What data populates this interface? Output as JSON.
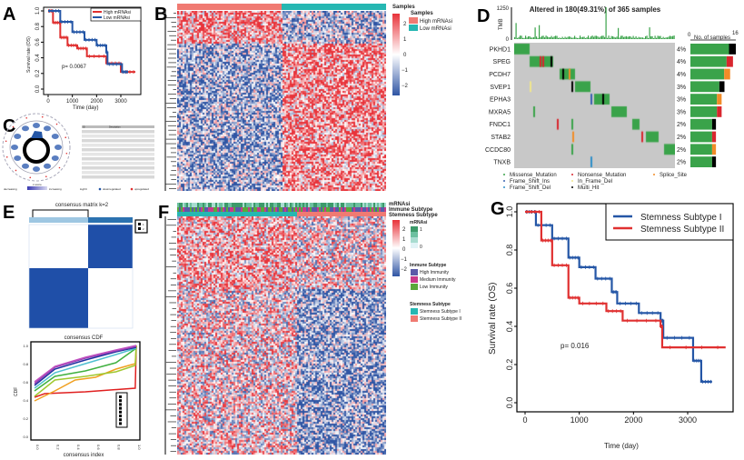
{
  "colors": {
    "red": "#e03030",
    "blue": "#2456a6",
    "heat_hi": "#e8333a",
    "heat_lo": "#2f55a4",
    "salmon": "#f07a72",
    "teal": "#26b7b2",
    "green": "#3aa34a",
    "gray": "#c8c8c8"
  },
  "panels": {
    "A": "A",
    "B": "B",
    "C": "C",
    "D": "D",
    "E": "E",
    "F": "F",
    "G": "G"
  },
  "chart_data": [
    {
      "id": "A",
      "type": "line",
      "xlabel": "Time (day)",
      "ylabel": "Survival rate (OS)",
      "xticks": [
        "0",
        "1000",
        "2000",
        "3000"
      ],
      "yticks": [
        "0.0",
        "0.2",
        "0.4",
        "0.6",
        "0.8",
        "1.0"
      ],
      "xlim": [
        0,
        3600
      ],
      "ylim": [
        0,
        1
      ],
      "annotation": "p= 0.0067",
      "legend": "top-right",
      "series": [
        {
          "name": "High mRNAsi",
          "color": "#e03030",
          "points": [
            [
              0,
              1
            ],
            [
              200,
              0.85
            ],
            [
              500,
              0.66
            ],
            [
              800,
              0.56
            ],
            [
              1200,
              0.52
            ],
            [
              1600,
              0.42
            ],
            [
              2400,
              0.33
            ],
            [
              3000,
              0.22
            ],
            [
              3600,
              0.22
            ]
          ]
        },
        {
          "name": "Low mRNAsi",
          "color": "#2456a6",
          "points": [
            [
              0,
              1
            ],
            [
              500,
              0.86
            ],
            [
              1000,
              0.73
            ],
            [
              1500,
              0.63
            ],
            [
              2000,
              0.56
            ],
            [
              2400,
              0.47
            ],
            [
              2450,
              0.32
            ],
            [
              3050,
              0.22
            ],
            [
              3300,
              0.22
            ]
          ]
        }
      ]
    },
    {
      "id": "G",
      "type": "line",
      "xlabel": "Time (day)",
      "ylabel": "Survival rate (OS)",
      "xticks": [
        "0",
        "1000",
        "2000",
        "3000"
      ],
      "yticks": [
        "0.0",
        "0.2",
        "0.4",
        "0.6",
        "0.8",
        "1.0"
      ],
      "xlim": [
        0,
        3700
      ],
      "ylim": [
        0,
        1
      ],
      "annotation": "p= 0.016",
      "legend": "top-right",
      "series": [
        {
          "name": "Stemness Subtype I",
          "color": "#2456a6",
          "points": [
            [
              0,
              1
            ],
            [
              200,
              0.93
            ],
            [
              500,
              0.86
            ],
            [
              800,
              0.76
            ],
            [
              1000,
              0.71
            ],
            [
              1300,
              0.65
            ],
            [
              1600,
              0.58
            ],
            [
              1700,
              0.52
            ],
            [
              2100,
              0.47
            ],
            [
              2500,
              0.43
            ],
            [
              2550,
              0.34
            ],
            [
              3100,
              0.22
            ],
            [
              3250,
              0.11
            ],
            [
              3450,
              0.11
            ]
          ]
        },
        {
          "name": "Stemness Subtype II",
          "color": "#e03030",
          "points": [
            [
              0,
              1
            ],
            [
              300,
              0.85
            ],
            [
              500,
              0.72
            ],
            [
              800,
              0.55
            ],
            [
              1000,
              0.52
            ],
            [
              1500,
              0.48
            ],
            [
              1800,
              0.43
            ],
            [
              2500,
              0.4
            ],
            [
              2530,
              0.29
            ],
            [
              3700,
              0.29
            ]
          ]
        }
      ]
    },
    {
      "id": "E-cdf",
      "type": "line",
      "title": "consensus CDF",
      "xlabel": "consensus index",
      "ylabel": "CDF",
      "xticks": [
        "0.0",
        "0.2",
        "0.4",
        "0.6",
        "0.8",
        "1.0"
      ],
      "yticks": [
        "0.0",
        "0.2",
        "0.4",
        "0.6",
        "0.8",
        "1.0"
      ],
      "xlim": [
        0,
        1
      ],
      "ylim": [
        0,
        1
      ],
      "series": [
        {
          "color": "#e02020",
          "points": [
            [
              0,
              0.43
            ],
            [
              0.1,
              0.47
            ],
            [
              0.5,
              0.49
            ],
            [
              0.99,
              0.53
            ],
            [
              1,
              1
            ]
          ]
        },
        {
          "color": "#f0a020",
          "points": [
            [
              0,
              0.39
            ],
            [
              0.2,
              0.5
            ],
            [
              0.4,
              0.62
            ],
            [
              0.6,
              0.65
            ],
            [
              0.8,
              0.74
            ],
            [
              0.99,
              0.8
            ],
            [
              1,
              1
            ]
          ]
        },
        {
          "color": "#a0c830",
          "points": [
            [
              0,
              0.44
            ],
            [
              0.2,
              0.62
            ],
            [
              0.5,
              0.66
            ],
            [
              0.8,
              0.71
            ],
            [
              0.99,
              0.78
            ],
            [
              1,
              1
            ]
          ]
        },
        {
          "color": "#40b040",
          "points": [
            [
              0,
              0.5
            ],
            [
              0.2,
              0.66
            ],
            [
              0.5,
              0.72
            ],
            [
              0.8,
              0.81
            ],
            [
              1,
              0.97
            ]
          ]
        },
        {
          "color": "#50c0d0",
          "points": [
            [
              0,
              0.53
            ],
            [
              0.2,
              0.7
            ],
            [
              0.5,
              0.8
            ],
            [
              0.8,
              0.9
            ],
            [
              1,
              0.97
            ]
          ]
        },
        {
          "color": "#2030a0",
          "points": [
            [
              0,
              0.56
            ],
            [
              0.2,
              0.74
            ],
            [
              0.5,
              0.84
            ],
            [
              0.8,
              0.93
            ],
            [
              1,
              0.98
            ]
          ]
        },
        {
          "color": "#9040b0",
          "points": [
            [
              0,
              0.58
            ],
            [
              0.2,
              0.76
            ],
            [
              0.5,
              0.86
            ],
            [
              0.8,
              0.94
            ],
            [
              1,
              0.99
            ]
          ]
        },
        {
          "color": "#c050c0",
          "points": [
            [
              0,
              0.6
            ],
            [
              0.2,
              0.77
            ],
            [
              0.5,
              0.87
            ],
            [
              0.8,
              0.95
            ],
            [
              1,
              1
            ]
          ]
        }
      ]
    },
    {
      "id": "D-side",
      "type": "bar",
      "xlabel": "No. of samples",
      "xlim": [
        0,
        16
      ],
      "categories": [
        "PKHD1",
        "SPEG",
        "PCDH7",
        "SVEP1",
        "EPHA3",
        "MXRA5",
        "FNDC1",
        "STAB2",
        "CCDC80",
        "TNXB"
      ],
      "values": [
        16,
        15,
        14,
        12,
        11,
        11,
        9,
        9,
        9,
        9
      ]
    }
  ],
  "A": {
    "legend": [
      "High mRNAsi",
      "Low mRNAsi"
    ]
  },
  "B": {
    "legend_title": "Samples",
    "group_title": "Samples",
    "groups": [
      "High mRNAsi",
      "Low mRNAsi"
    ],
    "scale": [
      "2",
      "1",
      "0",
      "−1",
      "−2"
    ]
  },
  "C": {
    "table_header": [
      "ID",
      "Description"
    ],
    "legend_labels": [
      "decreasing",
      "z-score",
      "increasing",
      "logFC",
      "downregulated",
      "upregulated"
    ]
  },
  "D": {
    "title": "Altered in 180(49.31%) of 365 samples",
    "tmb_label": "TMB",
    "tmb_max": "1250",
    "tmb_min": "0",
    "side_min": "0",
    "side_max": "16",
    "side_label": "No. of samples",
    "genes": [
      "PKHD1",
      "SPEG",
      "PCDH7",
      "SVEP1",
      "EPHA3",
      "MXRA5",
      "FNDC1",
      "STAB2",
      "CCDC80",
      "TNXB"
    ],
    "percents": [
      "4%",
      "4%",
      "4%",
      "3%",
      "3%",
      "3%",
      "2%",
      "2%",
      "2%",
      "2%"
    ],
    "legend": [
      {
        "label": "Missense_Mutation",
        "color": "#3aa34a"
      },
      {
        "label": "Nonsense_Mutation",
        "color": "#d9262e"
      },
      {
        "label": "Splice_Site",
        "color": "#f28c28"
      },
      {
        "label": "Frame_Shift_Ins",
        "color": "#3a62b0"
      },
      {
        "label": "In_Frame_Del",
        "color": "#f0e68c"
      },
      {
        "label": "Frame_Shift_Del",
        "color": "#2f8fc8"
      },
      {
        "label": "Multi_Hit",
        "color": "#000000"
      }
    ]
  },
  "E": {
    "title": "consensus matrix k=2",
    "legend": [
      "1",
      "2"
    ]
  },
  "F": {
    "ann_labels": [
      "mRNAsi",
      "Immune Subtype",
      "Stemness Subtype"
    ],
    "scale": [
      "2",
      "1",
      "0",
      "−1",
      "−2"
    ],
    "mrnasi_title": "mRNAsi",
    "mrnasi_ticks": [
      "1",
      "0"
    ],
    "immune_title": "Immune Subtype",
    "immune": [
      {
        "label": "High Immunity",
        "color": "#5a5aa8"
      },
      {
        "label": "Medium Immunity",
        "color": "#c83a8a"
      },
      {
        "label": "Low Immunity",
        "color": "#5aa83a"
      }
    ],
    "stem_title": "Stemness Subtype",
    "stem": [
      {
        "label": "Stemness Subtype I",
        "color": "#26b7b2"
      },
      {
        "label": "Stemness Subtype II",
        "color": "#f07a72"
      }
    ]
  }
}
